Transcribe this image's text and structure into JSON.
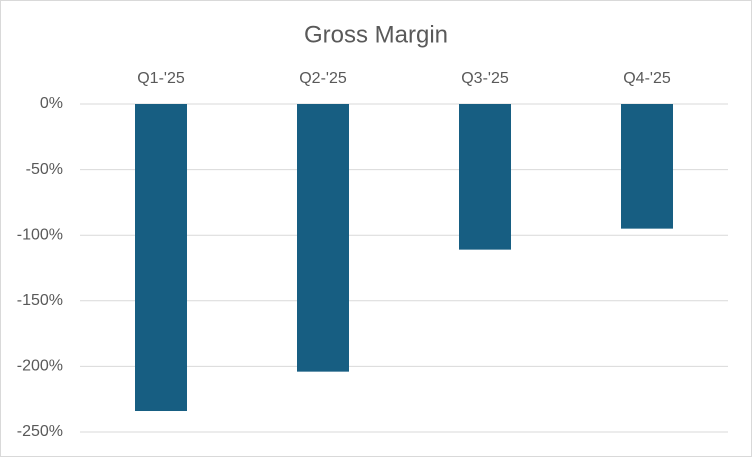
{
  "chart_data": {
    "type": "bar",
    "title": "Gross Margin",
    "categories": [
      "Q1-'25",
      "Q2-'25",
      "Q3-'25",
      "Q4-'25"
    ],
    "values": [
      -234,
      -204,
      -111,
      -95
    ],
    "color": "#175e82",
    "ylim": [
      -250,
      0
    ],
    "yticks": [
      {
        "value": -250,
        "label": "-250%"
      },
      {
        "value": -200,
        "label": "-200%"
      },
      {
        "value": -150,
        "label": "-150%"
      },
      {
        "value": -100,
        "label": "-100%"
      },
      {
        "value": -50,
        "label": "-50%"
      },
      {
        "value": 0,
        "label": "0%"
      }
    ],
    "grid": true
  }
}
